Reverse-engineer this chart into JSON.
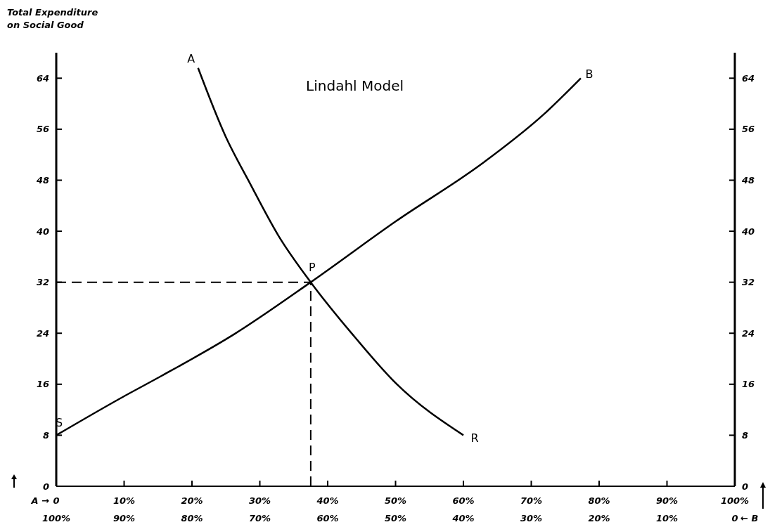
{
  "chart_data": {
    "type": "line",
    "title": "Lindahl Model",
    "ylabel": "Total Expenditure on Social Good",
    "xlim": [
      0,
      100
    ],
    "xticks": [
      {
        "value": 0,
        "label": "0"
      },
      {
        "value": 10,
        "label": "10%"
      },
      {
        "value": 20,
        "label": "20%"
      },
      {
        "value": 30,
        "label": "30%"
      },
      {
        "value": 40,
        "label": "40%"
      },
      {
        "value": 50,
        "label": "50%"
      },
      {
        "value": 60,
        "label": "60%"
      },
      {
        "value": 70,
        "label": "70%"
      },
      {
        "value": 80,
        "label": "80%"
      },
      {
        "value": 90,
        "label": "90%"
      },
      {
        "value": 100,
        "label": "100%"
      }
    ],
    "x2lim": [
      100,
      0
    ],
    "x2ticks": [
      {
        "value": 100,
        "label": "100%"
      },
      {
        "value": 90,
        "label": "90%"
      },
      {
        "value": 80,
        "label": "80%"
      },
      {
        "value": 70,
        "label": "70%"
      },
      {
        "value": 60,
        "label": "60%"
      },
      {
        "value": 50,
        "label": "50%"
      },
      {
        "value": 40,
        "label": "40%"
      },
      {
        "value": 30,
        "label": "30%"
      },
      {
        "value": 20,
        "label": "20%"
      },
      {
        "value": 10,
        "label": "10%"
      },
      0
    ],
    "ylim": [
      0,
      68
    ],
    "yticks": [
      0,
      8,
      16,
      24,
      32,
      40,
      48,
      56,
      64
    ],
    "y2lim": [
      0,
      68
    ],
    "y2ticks": [
      0,
      8,
      16,
      24,
      32,
      40,
      48,
      56,
      64
    ],
    "series": [
      {
        "color": "#000000",
        "x": [
          20.9,
          24.9,
          28.5,
          32.8,
          37.5,
          43.6,
          50.1,
          60
        ],
        "values": [
          65.6,
          55,
          47.6,
          39.2,
          32,
          23.9,
          16.1,
          8
        ]
      },
      {
        "color": "#000000",
        "x": [
          0,
          9.8,
          15.5,
          26.3,
          37.5,
          50.1,
          63,
          71.7,
          77.3
        ],
        "values": [
          8,
          14,
          17.3,
          23.9,
          32,
          41.6,
          50.8,
          58.2,
          64
        ]
      }
    ],
    "ref_lines": [
      {
        "axis": "y",
        "value": 32,
        "line_style": "dashed",
        "color": "#000000"
      },
      {
        "axis": "x",
        "value": 37.5,
        "line_style": "dashed",
        "color": "#000000"
      }
    ],
    "annotations": [
      {
        "text": "A",
        "x": 20.9,
        "y": 65.6
      },
      {
        "text": "B",
        "x": 77.3,
        "y": 64
      },
      {
        "text": "S",
        "x": 0,
        "y": 8
      },
      {
        "text": "R",
        "x": 60,
        "y": 8
      },
      {
        "text": "P",
        "x": 37.5,
        "y": 32
      },
      "A →",
      "← B"
    ],
    "marker": "none",
    "line_style": "solid",
    "grid": false
  }
}
